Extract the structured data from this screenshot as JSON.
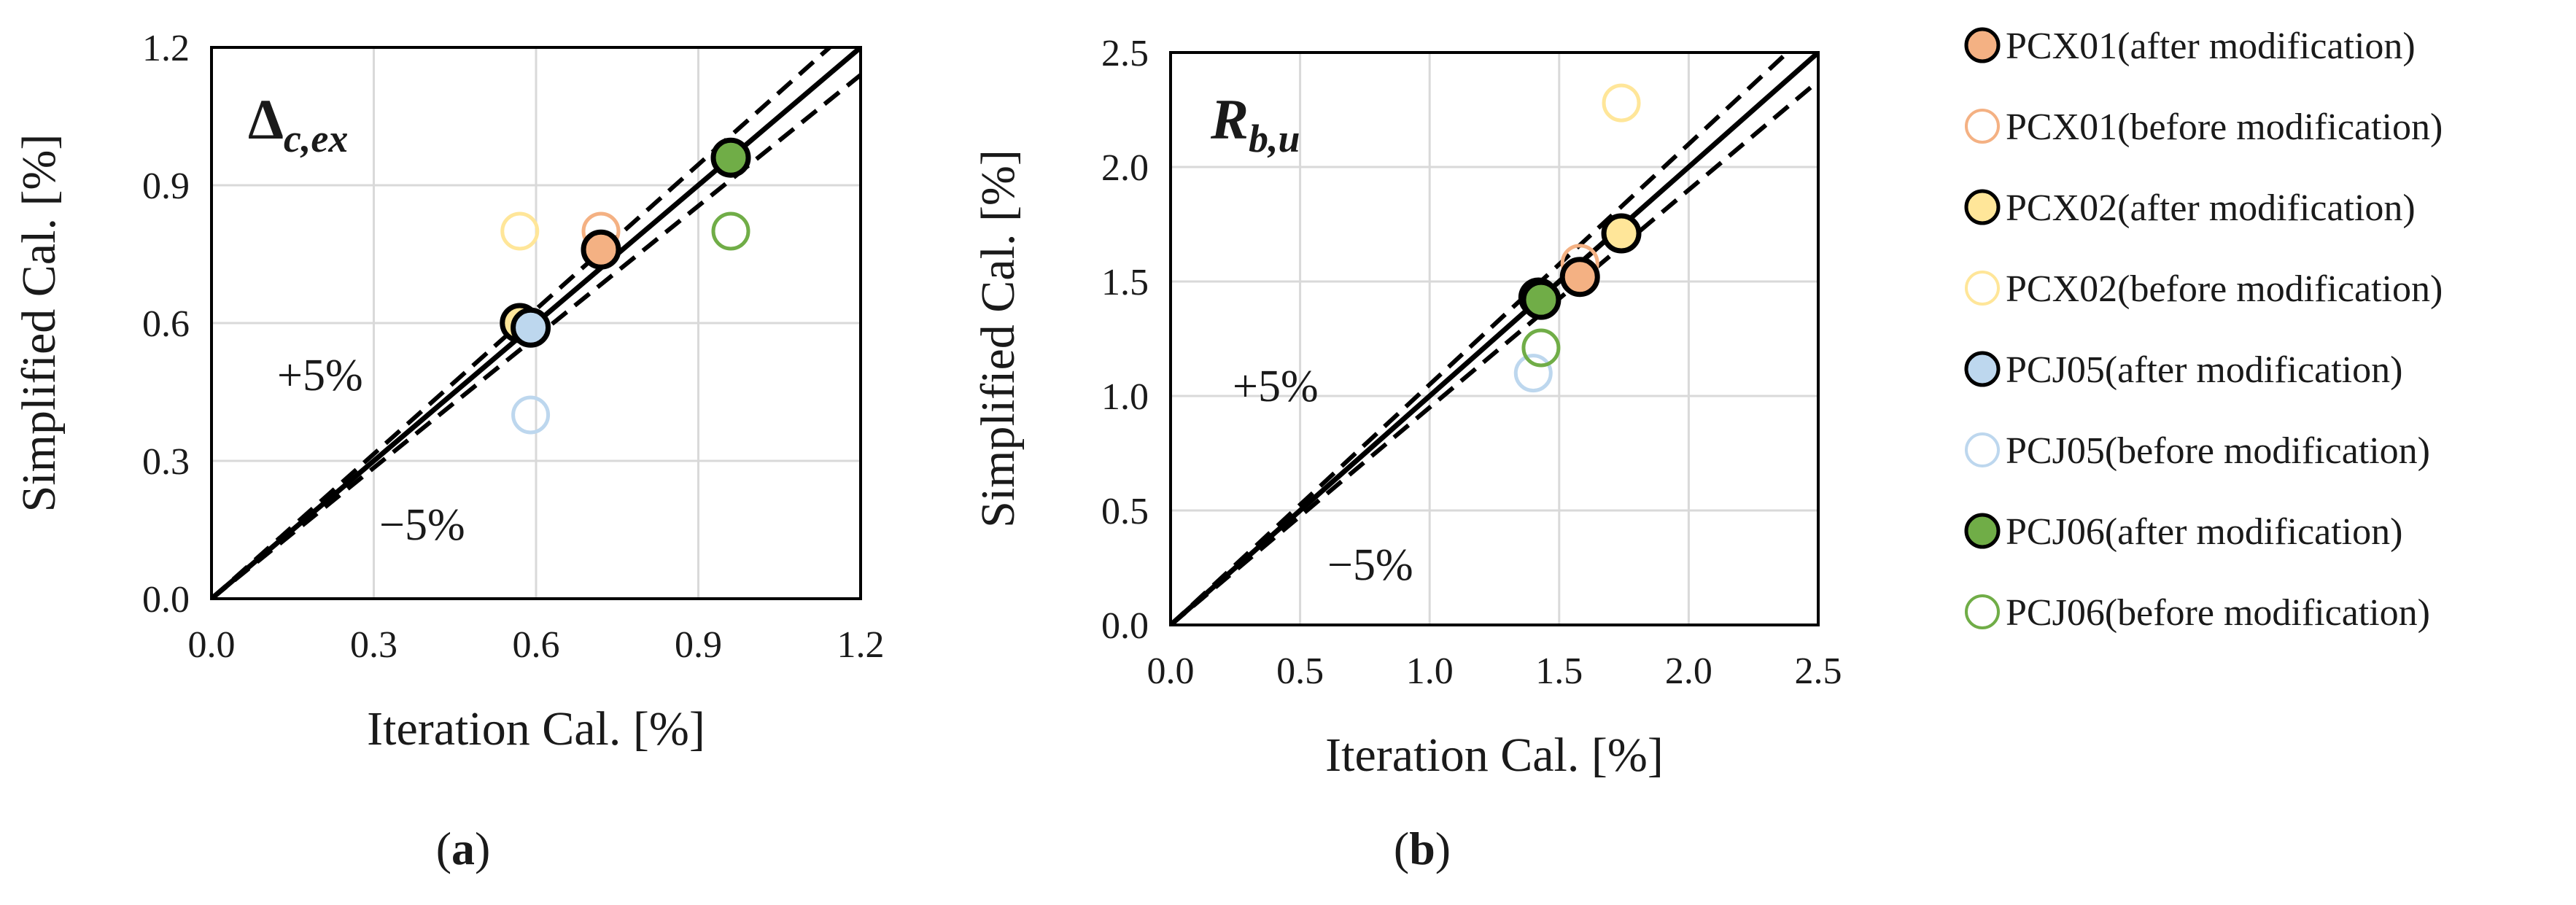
{
  "chart_data": [
    {
      "type": "scatter",
      "panel_label": "a",
      "title_main": "Δ",
      "title_sub": "c,ex",
      "xlabel": "Iteration Cal. [%]",
      "ylabel": "Simplified Cal. [%]",
      "xlim": [
        0.0,
        1.2
      ],
      "ylim": [
        0.0,
        1.2
      ],
      "xticks": [
        "0.0",
        "0.3",
        "0.6",
        "0.9",
        "1.2"
      ],
      "yticks": [
        "0.0",
        "0.3",
        "0.6",
        "0.9",
        "1.2"
      ],
      "grid": true,
      "reference_lines": [
        {
          "name": "y = x",
          "slope": 1.0,
          "style": "solid"
        },
        {
          "name": "+5%",
          "slope": 1.05,
          "style": "dashed"
        },
        {
          "name": "-5%",
          "slope": 0.95,
          "style": "dashed"
        }
      ],
      "annotations": {
        "plus": "+5%",
        "minus": "−5%"
      },
      "series": [
        {
          "name": "PCX01(after modification)",
          "x": 0.72,
          "y": 0.76
        },
        {
          "name": "PCX01(before modification)",
          "x": 0.72,
          "y": 0.8
        },
        {
          "name": "PCX02(after modification)",
          "x": 0.57,
          "y": 0.6
        },
        {
          "name": "PCX02(before modification)",
          "x": 0.57,
          "y": 0.8
        },
        {
          "name": "PCJ05(after modification)",
          "x": 0.59,
          "y": 0.59
        },
        {
          "name": "PCJ05(before modification)",
          "x": 0.59,
          "y": 0.4
        },
        {
          "name": "PCJ06(after modification)",
          "x": 0.96,
          "y": 0.96
        },
        {
          "name": "PCJ06(before modification)",
          "x": 0.96,
          "y": 0.8
        }
      ]
    },
    {
      "type": "scatter",
      "panel_label": "b",
      "title_main": "R",
      "title_sub": "b,u",
      "xlabel": "Iteration Cal. [%]",
      "ylabel": "Simplified Cal. [%]",
      "xlim": [
        0.0,
        2.5
      ],
      "ylim": [
        0.0,
        2.5
      ],
      "xticks": [
        "0.0",
        "0.5",
        "1.0",
        "1.5",
        "2.0",
        "2.5"
      ],
      "yticks": [
        "0.0",
        "0.5",
        "1.0",
        "1.5",
        "2.0",
        "2.5"
      ],
      "grid": true,
      "reference_lines": [
        {
          "name": "y = x",
          "slope": 1.0,
          "style": "solid"
        },
        {
          "name": "+5%",
          "slope": 1.05,
          "style": "dashed"
        },
        {
          "name": "-5%",
          "slope": 0.95,
          "style": "dashed"
        }
      ],
      "annotations": {
        "plus": "+5%",
        "minus": "−5%"
      },
      "series": [
        {
          "name": "PCX01(after modification)",
          "x": 1.58,
          "y": 1.52
        },
        {
          "name": "PCX01(before modification)",
          "x": 1.58,
          "y": 1.58
        },
        {
          "name": "PCX02(after modification)",
          "x": 1.74,
          "y": 1.71
        },
        {
          "name": "PCX02(before modification)",
          "x": 1.74,
          "y": 2.28
        },
        {
          "name": "PCJ05(after modification)",
          "x": 1.42,
          "y": 1.43
        },
        {
          "name": "PCJ05(before modification)",
          "x": 1.4,
          "y": 1.1
        },
        {
          "name": "PCJ06(after modification)",
          "x": 1.43,
          "y": 1.42
        },
        {
          "name": "PCJ06(before modification)",
          "x": 1.43,
          "y": 1.21
        }
      ]
    }
  ],
  "legend": {
    "placement": "right",
    "entries": [
      {
        "label": "PCX01(after modification)",
        "marker": "filled",
        "color": "#F4B183"
      },
      {
        "label": "PCX01(before modification)",
        "marker": "hollow",
        "color": "#F4B183"
      },
      {
        "label": "PCX02(after modification)",
        "marker": "filled",
        "color": "#FFE699"
      },
      {
        "label": "PCX02(before modification)",
        "marker": "hollow",
        "color": "#FFE699"
      },
      {
        "label": "PCJ05(after modification)",
        "marker": "filled",
        "color": "#BDD7EE"
      },
      {
        "label": "PCJ05(before modification)",
        "marker": "hollow",
        "color": "#BDD7EE"
      },
      {
        "label": "PCJ06(after modification)",
        "marker": "filled",
        "color": "#70AD47"
      },
      {
        "label": "PCJ06(before modification)",
        "marker": "hollow",
        "color": "#70AD47"
      }
    ]
  },
  "colors": {
    "outline": "#000000",
    "grid": "#d9d9d9",
    "text": "#1a1a1a"
  }
}
